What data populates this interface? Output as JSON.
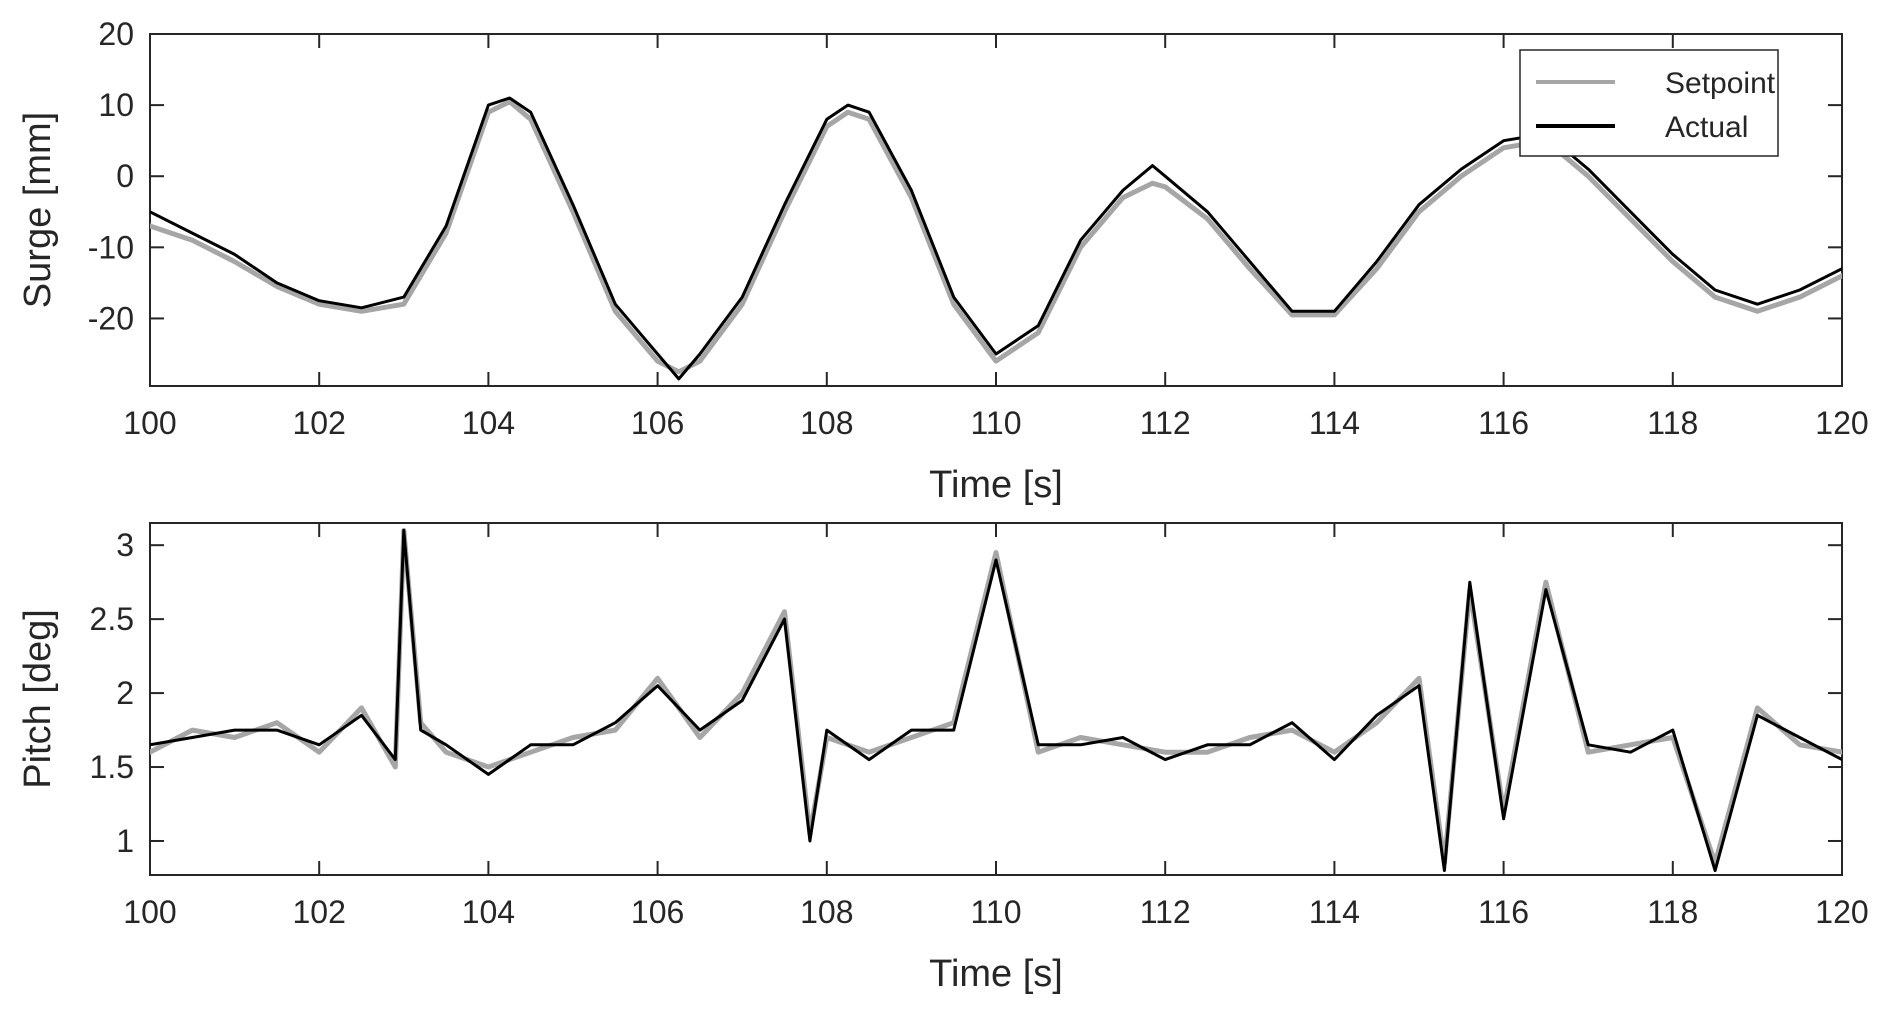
{
  "chart_data": [
    {
      "type": "line",
      "title": "",
      "xlabel": "Time [s]",
      "ylabel": "Surge [mm]",
      "xlim": [
        100,
        120
      ],
      "ylim": [
        -29.5,
        20
      ],
      "xticks": [
        100,
        102,
        104,
        106,
        108,
        110,
        112,
        114,
        116,
        118,
        120
      ],
      "yticks": [
        -20,
        -10,
        0,
        10,
        20
      ],
      "grid": false,
      "legend_position": "top-right",
      "legend": [
        "Setpoint",
        "Actual"
      ],
      "series": [
        {
          "name": "Setpoint",
          "color": "#a6a6a6",
          "x": [
            100.0,
            100.5,
            101.0,
            101.5,
            102.0,
            102.5,
            103.0,
            103.5,
            104.0,
            104.25,
            104.5,
            105.0,
            105.5,
            106.0,
            106.25,
            106.5,
            107.0,
            107.5,
            108.0,
            108.25,
            108.5,
            109.0,
            109.5,
            110.0,
            110.5,
            111.0,
            111.5,
            111.85,
            112.0,
            112.5,
            113.0,
            113.5,
            114.0,
            114.5,
            115.0,
            115.5,
            116.0,
            116.5,
            117.0,
            117.5,
            118.0,
            118.5,
            119.0,
            119.5,
            120.0
          ],
          "y": [
            -7,
            -9,
            -12,
            -15.5,
            -18,
            -19,
            -18,
            -8,
            9,
            10.5,
            8,
            -5,
            -19,
            -26,
            -27.5,
            -26,
            -18,
            -5,
            7,
            9,
            8,
            -3,
            -18,
            -26,
            -22,
            -10,
            -3,
            -1,
            -1.5,
            -6,
            -13,
            -19.5,
            -19.5,
            -13,
            -5,
            0,
            4,
            5,
            0,
            -6,
            -12,
            -17,
            -19,
            -17,
            -14
          ]
        },
        {
          "name": "Actual",
          "color": "#000000",
          "x": [
            100.0,
            100.5,
            101.0,
            101.5,
            102.0,
            102.5,
            103.0,
            103.5,
            104.0,
            104.25,
            104.5,
            105.0,
            105.5,
            106.0,
            106.25,
            106.5,
            107.0,
            107.5,
            108.0,
            108.25,
            108.5,
            109.0,
            109.5,
            110.0,
            110.5,
            111.0,
            111.5,
            111.85,
            112.0,
            112.5,
            113.0,
            113.5,
            114.0,
            114.5,
            115.0,
            115.5,
            116.0,
            116.5,
            117.0,
            117.5,
            118.0,
            118.5,
            119.0,
            119.5,
            120.0
          ],
          "y": [
            -5,
            -8,
            -11,
            -15,
            -17.5,
            -18.5,
            -17,
            -7,
            10,
            11,
            9,
            -4,
            -18,
            -25,
            -28.5,
            -25,
            -17,
            -4,
            8,
            10,
            9,
            -2,
            -17,
            -25,
            -21,
            -9,
            -2,
            1.5,
            0,
            -5,
            -12,
            -19,
            -19,
            -12,
            -4,
            1,
            5,
            6,
            1,
            -5,
            -11,
            -16,
            -18,
            -16,
            -13
          ]
        }
      ]
    },
    {
      "type": "line",
      "title": "",
      "xlabel": "Time [s]",
      "ylabel": "Pitch [deg]",
      "xlim": [
        100,
        120
      ],
      "ylim": [
        0.77,
        3.15
      ],
      "xticks": [
        100,
        102,
        104,
        106,
        108,
        110,
        112,
        114,
        116,
        118,
        120
      ],
      "yticks": [
        1,
        1.5,
        2,
        2.5,
        3
      ],
      "yticklabels": [
        "1",
        "1.5",
        "2",
        "2.5",
        "3"
      ],
      "grid": false,
      "series": [
        {
          "name": "Setpoint",
          "color": "#a6a6a6",
          "x": [
            100.0,
            100.5,
            101.0,
            101.5,
            102.0,
            102.5,
            102.9,
            103.0,
            103.2,
            103.5,
            104.0,
            104.5,
            105.0,
            105.5,
            106.0,
            106.5,
            107.0,
            107.5,
            107.8,
            108.0,
            108.5,
            109.0,
            109.5,
            110.0,
            110.5,
            111.0,
            111.5,
            112.0,
            112.5,
            113.0,
            113.5,
            114.0,
            114.5,
            115.0,
            115.3,
            115.6,
            116.0,
            116.5,
            117.0,
            117.5,
            118.0,
            118.5,
            119.0,
            119.5,
            120.0
          ],
          "y": [
            1.6,
            1.75,
            1.7,
            1.8,
            1.6,
            1.9,
            1.5,
            3.1,
            1.8,
            1.6,
            1.5,
            1.6,
            1.7,
            1.75,
            2.1,
            1.7,
            2.0,
            2.55,
            1.05,
            1.7,
            1.6,
            1.7,
            1.8,
            2.95,
            1.6,
            1.7,
            1.65,
            1.6,
            1.6,
            1.7,
            1.75,
            1.6,
            1.8,
            2.1,
            0.85,
            2.7,
            1.2,
            2.75,
            1.6,
            1.65,
            1.7,
            0.85,
            1.9,
            1.65,
            1.6
          ]
        },
        {
          "name": "Actual",
          "color": "#000000",
          "x": [
            100.0,
            100.5,
            101.0,
            101.5,
            102.0,
            102.5,
            102.9,
            103.0,
            103.2,
            103.5,
            104.0,
            104.5,
            105.0,
            105.5,
            106.0,
            106.5,
            107.0,
            107.5,
            107.8,
            108.0,
            108.5,
            109.0,
            109.5,
            110.0,
            110.5,
            111.0,
            111.5,
            112.0,
            112.5,
            113.0,
            113.5,
            114.0,
            114.5,
            115.0,
            115.3,
            115.6,
            116.0,
            116.5,
            117.0,
            117.5,
            118.0,
            118.5,
            119.0,
            119.5,
            120.0
          ],
          "y": [
            1.65,
            1.7,
            1.75,
            1.75,
            1.65,
            1.85,
            1.55,
            3.1,
            1.75,
            1.65,
            1.45,
            1.65,
            1.65,
            1.8,
            2.05,
            1.75,
            1.95,
            2.5,
            1.0,
            1.75,
            1.55,
            1.75,
            1.75,
            2.9,
            1.65,
            1.65,
            1.7,
            1.55,
            1.65,
            1.65,
            1.8,
            1.55,
            1.85,
            2.05,
            0.8,
            2.75,
            1.15,
            2.7,
            1.65,
            1.6,
            1.75,
            0.8,
            1.85,
            1.7,
            1.55
          ]
        }
      ]
    }
  ]
}
